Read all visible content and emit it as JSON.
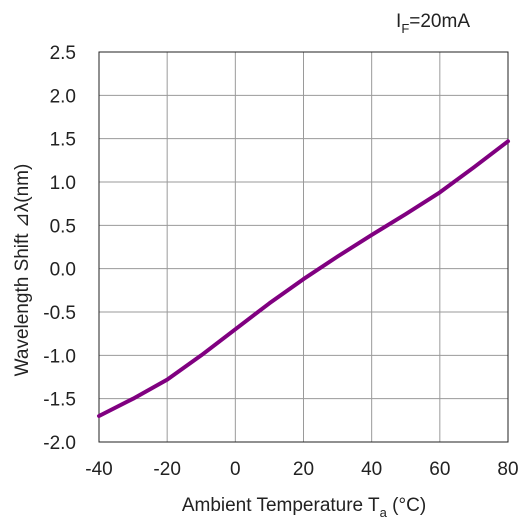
{
  "chart_data": {
    "type": "line",
    "condition": {
      "symbol": "I",
      "subscript": "F",
      "value": "=20mA"
    },
    "xlabel": {
      "text": "Ambient Temperature T",
      "subscript": "a",
      "unit": " (°C)"
    },
    "ylabel": "Wavelength Shift  ⊿λ(nm)",
    "xlim": [
      -40,
      80
    ],
    "ylim": [
      -2.0,
      2.5
    ],
    "x_ticks": [
      "-40",
      "-20",
      "0",
      "20",
      "40",
      "60",
      "80"
    ],
    "y_ticks": [
      "2.5",
      "2.0",
      "1.5",
      "1.0",
      "0.5",
      "0.0",
      "-0.5",
      "-1.0",
      "-1.5",
      "-2.0"
    ],
    "grid": true,
    "series": [
      {
        "color": "#800080",
        "x": [
          -40,
          -30,
          -20,
          -10,
          0,
          10,
          20,
          30,
          40,
          50,
          60,
          70,
          80
        ],
        "y": [
          -1.7,
          -1.5,
          -1.28,
          -1.0,
          -0.7,
          -0.4,
          -0.12,
          0.14,
          0.39,
          0.63,
          0.88,
          1.17,
          1.47
        ]
      }
    ]
  }
}
